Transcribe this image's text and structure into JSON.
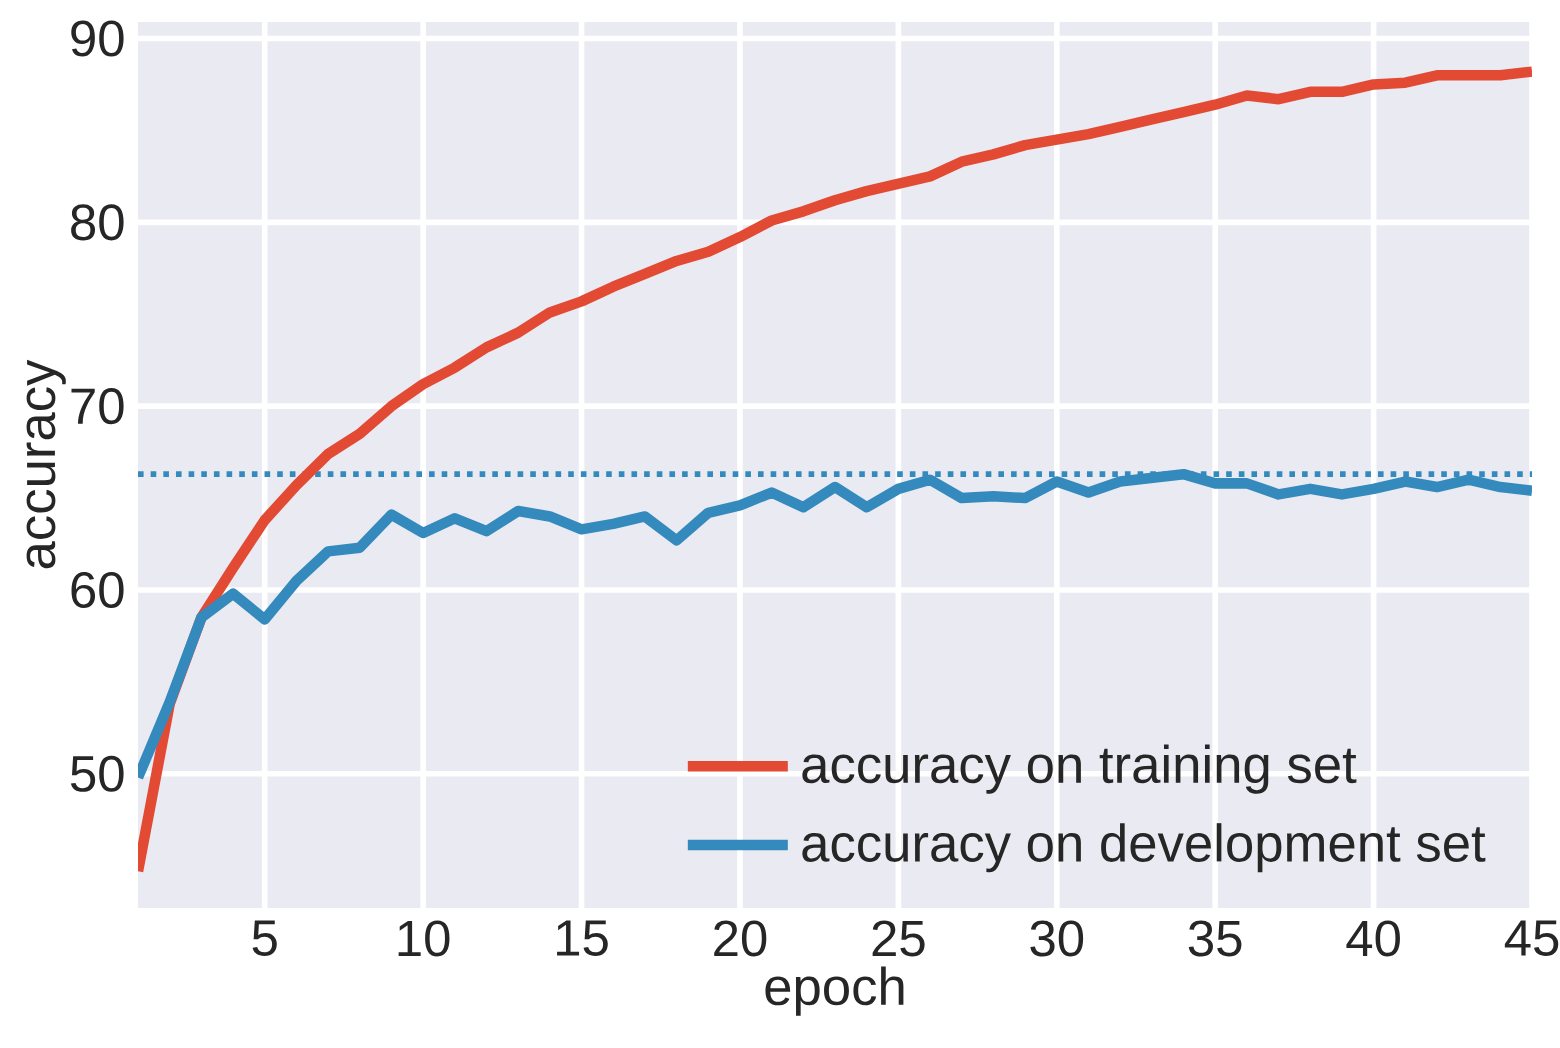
{
  "chart_data": {
    "type": "line",
    "xlabel": "epoch",
    "ylabel": "accuracy",
    "x": [
      1,
      2,
      3,
      4,
      5,
      6,
      7,
      8,
      9,
      10,
      11,
      12,
      13,
      14,
      15,
      16,
      17,
      18,
      19,
      20,
      21,
      22,
      23,
      24,
      25,
      26,
      27,
      28,
      29,
      30,
      31,
      32,
      33,
      34,
      35,
      36,
      37,
      38,
      39,
      40,
      41,
      42,
      43,
      44,
      45
    ],
    "series": [
      {
        "name": "accuracy on training set",
        "color": "#e24a33",
        "values": [
          44.7,
          53.8,
          58.5,
          61.2,
          63.8,
          65.7,
          67.4,
          68.5,
          70.0,
          71.2,
          72.1,
          73.2,
          74.0,
          75.1,
          75.7,
          76.5,
          77.2,
          77.9,
          78.4,
          79.2,
          80.1,
          80.6,
          81.2,
          81.7,
          82.1,
          82.5,
          83.3,
          83.7,
          84.2,
          84.5,
          84.8,
          85.2,
          85.6,
          86.0,
          86.4,
          86.9,
          86.7,
          87.1,
          87.1,
          87.5,
          87.6,
          88.0,
          88.0,
          88.0,
          88.2
        ]
      },
      {
        "name": "accuracy on development set",
        "color": "#348abd",
        "values": [
          49.8,
          53.9,
          58.5,
          59.8,
          58.4,
          60.5,
          62.1,
          62.3,
          64.1,
          63.1,
          63.9,
          63.2,
          64.3,
          64.0,
          63.3,
          63.6,
          64.0,
          62.7,
          64.2,
          64.6,
          65.3,
          64.5,
          65.6,
          64.5,
          65.5,
          66.0,
          65.0,
          65.1,
          65.0,
          65.9,
          65.3,
          65.9,
          66.1,
          66.3,
          65.8,
          65.8,
          65.2,
          65.5,
          65.2,
          65.5,
          65.9,
          65.6,
          66.0,
          65.6,
          65.4
        ]
      }
    ],
    "ref_lines": [
      {
        "axis": "y",
        "value": 66.3,
        "color": "#348abd",
        "line_style": "dotted"
      }
    ],
    "xlim": [
      1,
      45
    ],
    "ylim": [
      42.7,
      90.9
    ],
    "xticks": [
      5,
      10,
      15,
      20,
      25,
      30,
      35,
      40,
      45
    ],
    "yticks": [
      50,
      60,
      70,
      80,
      90
    ],
    "grid": true,
    "legend": "bottom right",
    "line_style": "solid",
    "marker": "none"
  }
}
